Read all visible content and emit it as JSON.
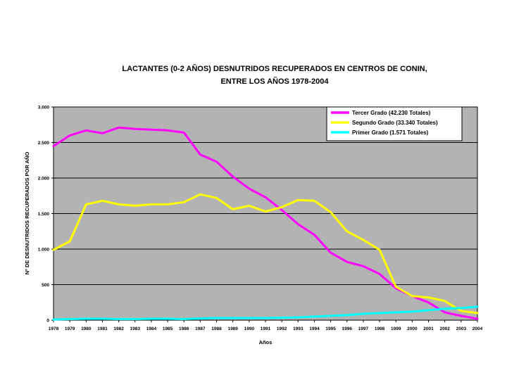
{
  "chart_data": {
    "type": "line",
    "title_lines": [
      "LACTANTES (0-2 AÑOS) DESNUTRIDOS RECUPERADOS EN CENTROS DE CONIN,",
      "ENTRE LOS AÑOS 1978-2004"
    ],
    "xlabel": "Años",
    "ylabel": "Nº DE DESNUTRIDOS RECUPERADOS POR AÑO",
    "categories": [
      "1978",
      "1979",
      "1980",
      "1981",
      "1982",
      "1983",
      "1984",
      "1985",
      "1986",
      "1987",
      "1988",
      "1989",
      "1990",
      "1991",
      "1992",
      "1993",
      "1994",
      "1995",
      "1996",
      "1997",
      "1998",
      "1999",
      "2000",
      "2001",
      "2002",
      "2003",
      "2004"
    ],
    "ylim": [
      0,
      3000
    ],
    "yticks": [
      0,
      500,
      1000,
      1500,
      2000,
      2500,
      3000
    ],
    "ytick_labels": [
      "0",
      "500",
      "1.000",
      "1.500",
      "2.000",
      "2.500",
      "3.000"
    ],
    "grid": true,
    "legend_position": "top-right",
    "colors": {
      "plot_background": "#b3b3b3",
      "grid": "#000000"
    },
    "series": [
      {
        "name": "Tercer Grado (42.230 Totales)",
        "color": "#ff00ff",
        "values": [
          2450,
          2600,
          2670,
          2630,
          2710,
          2690,
          2680,
          2670,
          2640,
          2330,
          2230,
          2020,
          1850,
          1730,
          1550,
          1350,
          1200,
          950,
          820,
          760,
          650,
          450,
          340,
          250,
          110,
          60,
          20
        ]
      },
      {
        "name": "Segundo Grado (33.340 Totales)",
        "color": "#ffff00",
        "values": [
          990,
          1110,
          1630,
          1680,
          1630,
          1610,
          1630,
          1630,
          1660,
          1770,
          1720,
          1560,
          1610,
          1530,
          1590,
          1690,
          1680,
          1520,
          1250,
          1130,
          990,
          470,
          340,
          320,
          270,
          130,
          100
        ]
      },
      {
        "name": "Primer Grado (1.571 Totales)",
        "color": "#00ffff",
        "values": [
          10,
          15,
          20,
          20,
          15,
          15,
          20,
          20,
          15,
          25,
          30,
          30,
          30,
          30,
          35,
          40,
          50,
          60,
          70,
          90,
          100,
          110,
          120,
          140,
          160,
          170,
          190
        ]
      }
    ]
  }
}
